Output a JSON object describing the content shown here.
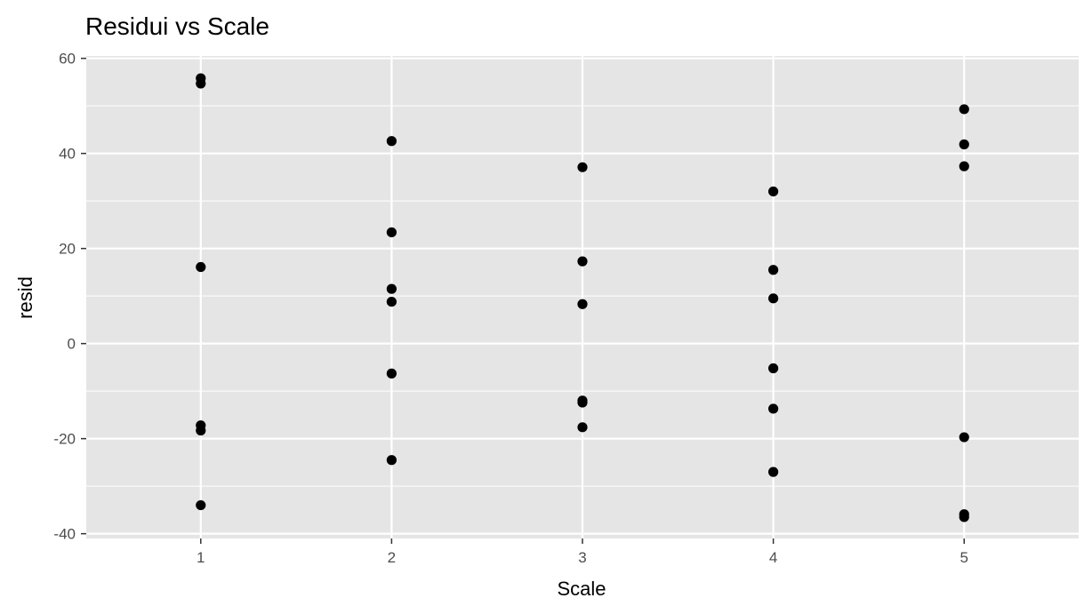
{
  "chart_data": {
    "type": "scatter",
    "title": "Residui vs Scale",
    "xlabel": "Scale",
    "ylabel": "resid",
    "xlim": [
      0.4,
      5.6
    ],
    "ylim": [
      -41,
      60.5
    ],
    "x_ticks": [
      1,
      2,
      3,
      4,
      5
    ],
    "y_ticks": [
      -40,
      -20,
      0,
      20,
      40,
      60
    ],
    "y_minor": [
      -30,
      -10,
      10,
      30,
      50
    ],
    "grid": true,
    "points": [
      {
        "x": 1,
        "y": 55.8
      },
      {
        "x": 1,
        "y": 54.7
      },
      {
        "x": 1,
        "y": 16.1
      },
      {
        "x": 1,
        "y": -17.2
      },
      {
        "x": 1,
        "y": -18.3
      },
      {
        "x": 1,
        "y": -34.0
      },
      {
        "x": 2,
        "y": 42.6
      },
      {
        "x": 2,
        "y": 23.4
      },
      {
        "x": 2,
        "y": 11.5
      },
      {
        "x": 2,
        "y": 8.8
      },
      {
        "x": 2,
        "y": -6.3
      },
      {
        "x": 2,
        "y": -24.5
      },
      {
        "x": 3,
        "y": 37.1
      },
      {
        "x": 3,
        "y": 17.3
      },
      {
        "x": 3,
        "y": 8.3
      },
      {
        "x": 3,
        "y": -12.0
      },
      {
        "x": 3,
        "y": -12.4
      },
      {
        "x": 3,
        "y": -17.6
      },
      {
        "x": 4,
        "y": 32.0
      },
      {
        "x": 4,
        "y": 15.5
      },
      {
        "x": 4,
        "y": 9.5
      },
      {
        "x": 4,
        "y": -5.2
      },
      {
        "x": 4,
        "y": -13.7
      },
      {
        "x": 4,
        "y": -27.0
      },
      {
        "x": 5,
        "y": 49.3
      },
      {
        "x": 5,
        "y": 41.9
      },
      {
        "x": 5,
        "y": 37.3
      },
      {
        "x": 5,
        "y": -19.7
      },
      {
        "x": 5,
        "y": -35.9
      },
      {
        "x": 5,
        "y": -36.5
      }
    ],
    "colors": {
      "panel": "#e5e5e5",
      "grid": "#ffffff",
      "point": "#000000",
      "tick_text": "#4d4d4d",
      "tick_mark": "#333333"
    }
  }
}
